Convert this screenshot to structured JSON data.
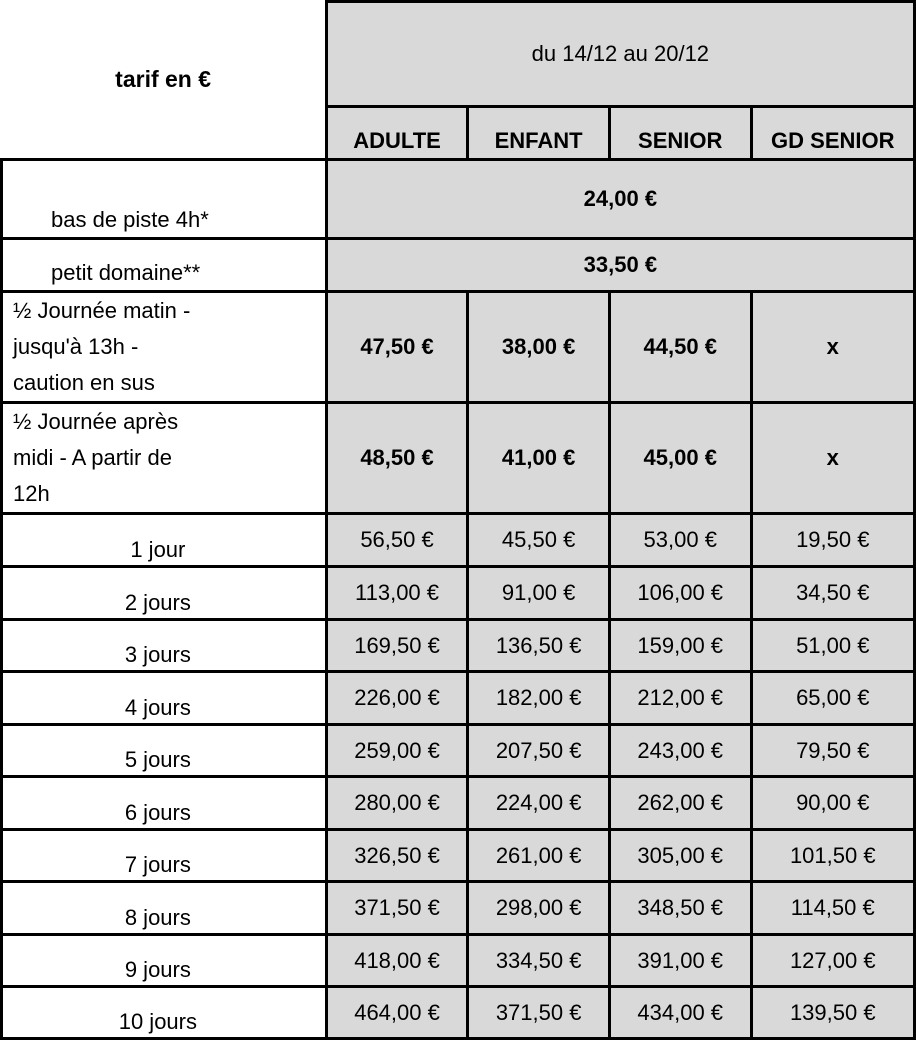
{
  "header": {
    "title": "tarif en €",
    "period": "du 14/12 au 20/12",
    "columns": [
      "ADULTE",
      "ENFANT",
      "SENIOR",
      "GD SENIOR"
    ]
  },
  "colors": {
    "cell_fill": "#d9d9d9",
    "border": "#000000"
  },
  "rows": [
    {
      "label": "bas de piste 4h*",
      "merged": "24,00 €",
      "style": "indent"
    },
    {
      "label": "petit domaine**",
      "merged": "33,50 €",
      "style": "indent"
    },
    {
      "label": "½ Journée matin - jusqu'à 13h  - caution en sus",
      "lines": [
        "½ Journée matin -",
        "jusqu'à 13h  -",
        " caution en sus"
      ],
      "values": [
        "47,50 €",
        "38,00 €",
        "44,50 €",
        "x"
      ],
      "style": "multi"
    },
    {
      "label": "½ Journée après midi - A partir de 12h",
      "lines": [
        "½ Journée après",
        "midi - A partir de",
        "12h"
      ],
      "values": [
        "48,50 €",
        "41,00 €",
        "45,00 €",
        "x"
      ],
      "style": "multi"
    },
    {
      "label": "1 jour",
      "values": [
        "56,50 €",
        "45,50 €",
        "53,00 €",
        "19,50 €"
      ],
      "style": "day"
    },
    {
      "label": "2 jours",
      "values": [
        "113,00 €",
        "91,00 €",
        "106,00 €",
        "34,50 €"
      ],
      "style": "day"
    },
    {
      "label": "3 jours",
      "values": [
        "169,50 €",
        "136,50 €",
        "159,00 €",
        "51,00 €"
      ],
      "style": "day"
    },
    {
      "label": "4 jours",
      "values": [
        "226,00 €",
        "182,00 €",
        "212,00 €",
        "65,00 €"
      ],
      "style": "day"
    },
    {
      "label": "5 jours",
      "values": [
        "259,00 €",
        "207,50 €",
        "243,00 €",
        "79,50 €"
      ],
      "style": "day"
    },
    {
      "label": "6 jours",
      "values": [
        "280,00 €",
        "224,00 €",
        "262,00 €",
        "90,00 €"
      ],
      "style": "day"
    },
    {
      "label": "7 jours",
      "values": [
        "326,50 €",
        "261,00 €",
        "305,00 €",
        "101,50 €"
      ],
      "style": "day"
    },
    {
      "label": "8 jours",
      "values": [
        "371,50 €",
        "298,00 €",
        "348,50 €",
        "114,50 €"
      ],
      "style": "day"
    },
    {
      "label": "9 jours",
      "values": [
        "418,00 €",
        "334,50 €",
        "391,00 €",
        "127,00 €"
      ],
      "style": "day"
    },
    {
      "label": "10 jours",
      "values": [
        "464,00 €",
        "371,50 €",
        "434,00 €",
        "139,50 €"
      ],
      "style": "day"
    }
  ]
}
